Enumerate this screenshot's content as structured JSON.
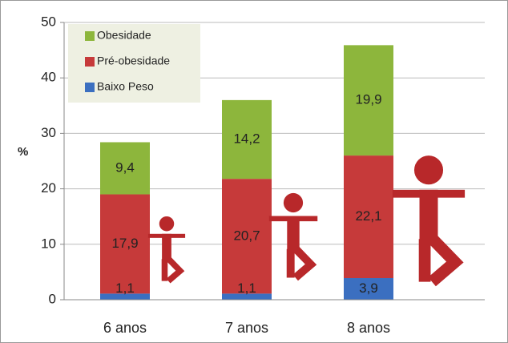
{
  "chart_data": {
    "type": "bar",
    "stacked": true,
    "ylabel": "%",
    "categories": [
      "6 anos",
      "7 anos",
      "8 anos"
    ],
    "series": [
      {
        "name": "Baixo Peso",
        "color": "#3b6fc0",
        "values": [
          1.1,
          1.1,
          3.9
        ],
        "value_labels": [
          "1,1",
          "1,1",
          "3,9"
        ]
      },
      {
        "name": "Pré-obesidade",
        "color": "#c63a3a",
        "values": [
          17.9,
          20.7,
          22.1
        ],
        "value_labels": [
          "17,9",
          "20,7",
          "22,1"
        ]
      },
      {
        "name": "Obesidade",
        "color": "#8db63c",
        "values": [
          9.4,
          14.2,
          19.9
        ],
        "value_labels": [
          "9,4",
          "14,2",
          "19,9"
        ]
      }
    ],
    "ylim": [
      0,
      50
    ],
    "yticks": [
      0,
      10,
      20,
      30,
      40,
      50
    ],
    "grid": true,
    "legend": "upper left"
  }
}
